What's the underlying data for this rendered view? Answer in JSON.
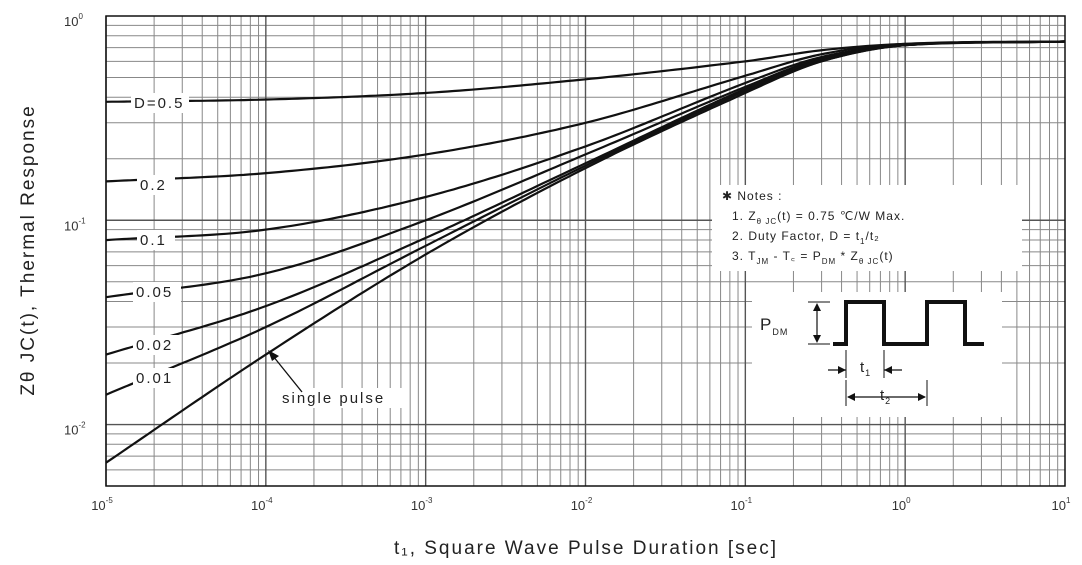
{
  "chart_data": {
    "type": "line",
    "title": "",
    "xlabel": "t₁, Square Wave Pulse Duration [sec]",
    "ylabel": "Zθ JC(t), Thermal Response",
    "x_scale": "log",
    "y_scale": "log",
    "xlim": [
      1e-05,
      10
    ],
    "ylim": [
      0.005,
      1
    ],
    "grid": true,
    "x_ticks": [
      {
        "value": 1e-05,
        "label": "10",
        "exp": "-5"
      },
      {
        "value": 0.0001,
        "label": "10",
        "exp": "-4"
      },
      {
        "value": 0.001,
        "label": "10",
        "exp": "-3"
      },
      {
        "value": 0.01,
        "label": "10",
        "exp": "-2"
      },
      {
        "value": 0.1,
        "label": "10",
        "exp": "-1"
      },
      {
        "value": 1,
        "label": "10",
        "exp": "0"
      },
      {
        "value": 10,
        "label": "10",
        "exp": "1"
      }
    ],
    "y_ticks": [
      {
        "value": 0.01,
        "label": "10",
        "exp": "-2"
      },
      {
        "value": 0.1,
        "label": "10",
        "exp": "-1"
      },
      {
        "value": 1,
        "label": "10",
        "exp": "0"
      }
    ],
    "series": [
      {
        "name": "D = 0.5",
        "label": "D=0.5",
        "x": [
          1e-05,
          0.0001,
          0.001,
          0.01,
          0.1,
          0.3,
          1,
          10
        ],
        "y": [
          0.38,
          0.39,
          0.42,
          0.49,
          0.6,
          0.68,
          0.73,
          0.75
        ]
      },
      {
        "name": "D = 0.2",
        "label": "0.2",
        "x": [
          1e-05,
          0.0001,
          0.001,
          0.01,
          0.1,
          0.3,
          1,
          10
        ],
        "y": [
          0.155,
          0.17,
          0.21,
          0.3,
          0.51,
          0.65,
          0.73,
          0.75
        ]
      },
      {
        "name": "D = 0.1",
        "label": "0.1",
        "x": [
          1e-05,
          0.0001,
          0.001,
          0.01,
          0.1,
          0.3,
          1,
          10
        ],
        "y": [
          0.08,
          0.09,
          0.13,
          0.23,
          0.47,
          0.63,
          0.72,
          0.75
        ]
      },
      {
        "name": "D = 0.05",
        "label": "0.05",
        "x": [
          1e-05,
          0.0001,
          0.001,
          0.01,
          0.1,
          0.3,
          1,
          10
        ],
        "y": [
          0.042,
          0.055,
          0.1,
          0.21,
          0.45,
          0.62,
          0.72,
          0.75
        ]
      },
      {
        "name": "D = 0.02",
        "label": "0.02",
        "x": [
          1e-05,
          0.0001,
          0.001,
          0.01,
          0.1,
          0.3,
          1,
          10
        ],
        "y": [
          0.022,
          0.038,
          0.082,
          0.19,
          0.44,
          0.61,
          0.72,
          0.75
        ]
      },
      {
        "name": "D = 0.01",
        "label": "0.01",
        "x": [
          1e-05,
          0.0001,
          0.001,
          0.01,
          0.1,
          0.3,
          1,
          10
        ],
        "y": [
          0.014,
          0.03,
          0.075,
          0.185,
          0.43,
          0.6,
          0.72,
          0.75
        ]
      },
      {
        "name": "single pulse",
        "label": "single pulse",
        "x": [
          1e-05,
          0.0001,
          0.001,
          0.01,
          0.1,
          0.3,
          1,
          10
        ],
        "y": [
          0.0065,
          0.022,
          0.068,
          0.18,
          0.42,
          0.6,
          0.72,
          0.75
        ]
      }
    ],
    "notes": {
      "header": "✱ Notes :",
      "items": [
        {
          "prefix": "1. Z",
          "sub": "θ JC",
          "rest": "(t) = 0.75 ℃/W Max."
        },
        {
          "prefix": "2. Duty Factor, D = t",
          "sub": "1",
          "rest": "/t₂"
        },
        {
          "prefix": "3. T",
          "sub": "JM",
          "rest": " - T꜀ = P",
          "sub2": "DM",
          "rest2": " * Z",
          "sub3": "θ JC",
          "rest3": "(t)"
        }
      ]
    },
    "diagram": {
      "pdm_label": "P",
      "pdm_sub": "DM",
      "t1_label": "t",
      "t1_sub": "1",
      "t2_label": "t",
      "t2_sub": "2"
    }
  }
}
